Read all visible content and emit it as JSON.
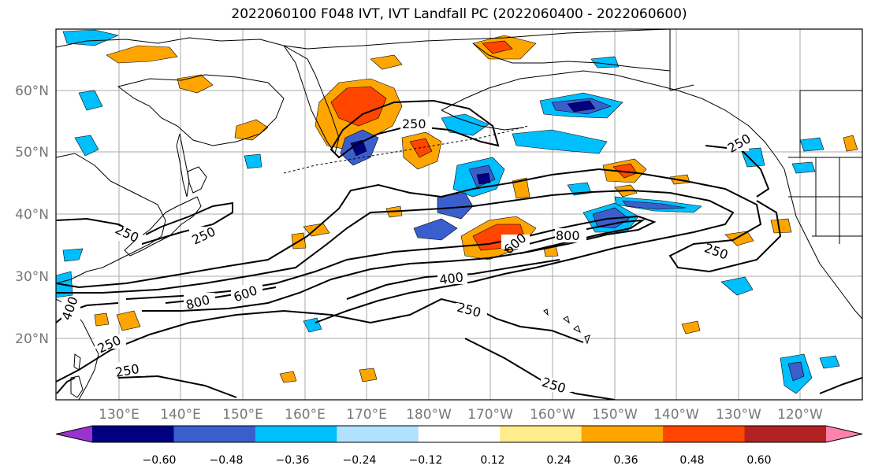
{
  "title": "2022060100 F048 IVT, IVT Landfall PC (2022060400 - 2022060600)",
  "lat_labels": [
    "60°N",
    "50°N",
    "40°N",
    "30°N",
    "20°N"
  ],
  "lon_labels": [
    "130°E",
    "140°E",
    "150°E",
    "160°E",
    "170°E",
    "180°W",
    "170°W",
    "160°W",
    "150°W",
    "140°W",
    "130°W",
    "120°W"
  ],
  "contour_labels": [
    "250",
    "250",
    "250",
    "250",
    "250",
    "250",
    "250",
    "250",
    "250",
    "400",
    "400",
    "600",
    "600",
    "800",
    "800"
  ],
  "colorbar": {
    "ticks": [
      "−0.60",
      "−0.48",
      "−0.36",
      "−0.24",
      "−0.12",
      "0.12",
      "0.24",
      "0.36",
      "0.48",
      "0.60"
    ],
    "colors": [
      "#9a32cd",
      "#000080",
      "#3a5fcd",
      "#00bfff",
      "#b0e2ff",
      "#ffffff",
      "#ffec8b",
      "#ffa500",
      "#ff4500",
      "#b22222",
      "#ff82ab"
    ]
  }
}
